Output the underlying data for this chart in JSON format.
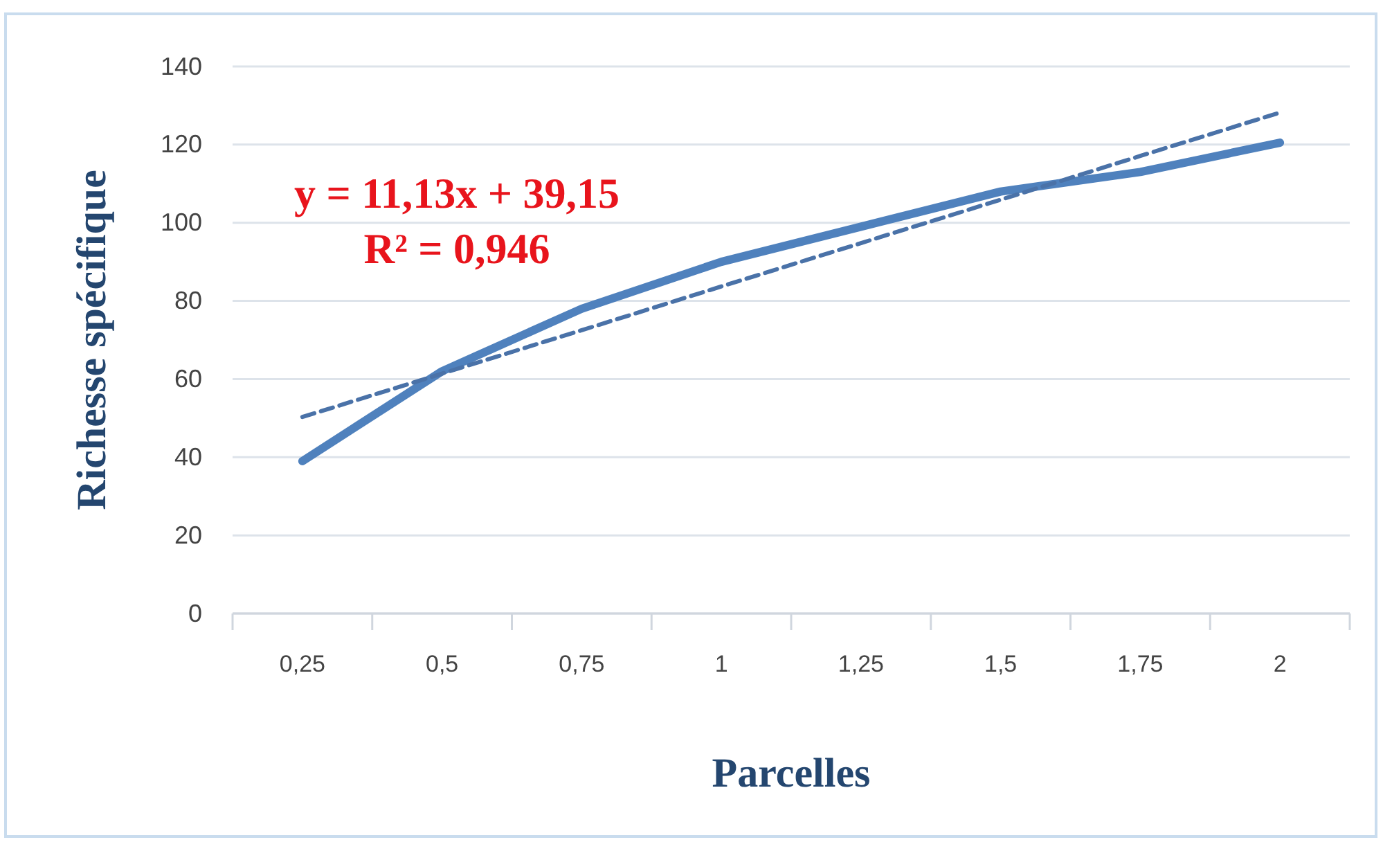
{
  "chart_data": {
    "type": "line",
    "xlabel": "Parcelles",
    "ylabel": "Richesse spécifique",
    "categories": [
      "0,25",
      "0,5",
      "0,75",
      "1",
      "1,25",
      "1,5",
      "1,75",
      "2"
    ],
    "series": [
      {
        "color": "#4f81bd",
        "line_style": "solid",
        "values": [
          39,
          62,
          78,
          90,
          99,
          108,
          113,
          120.5
        ]
      },
      {
        "color": "#4a72a8",
        "line_style": "dashed",
        "values": [
          50.3,
          61.4,
          72.5,
          83.7,
          94.8,
          105.9,
          117.1,
          128.2
        ]
      }
    ],
    "annotations": [
      "y = 11,13x + 39,15",
      "R² = 0,946"
    ],
    "ylim": [
      0,
      140
    ],
    "yticks": [
      0,
      20,
      40,
      60,
      80,
      100,
      120,
      140
    ],
    "grid": "y",
    "marker": "none"
  }
}
